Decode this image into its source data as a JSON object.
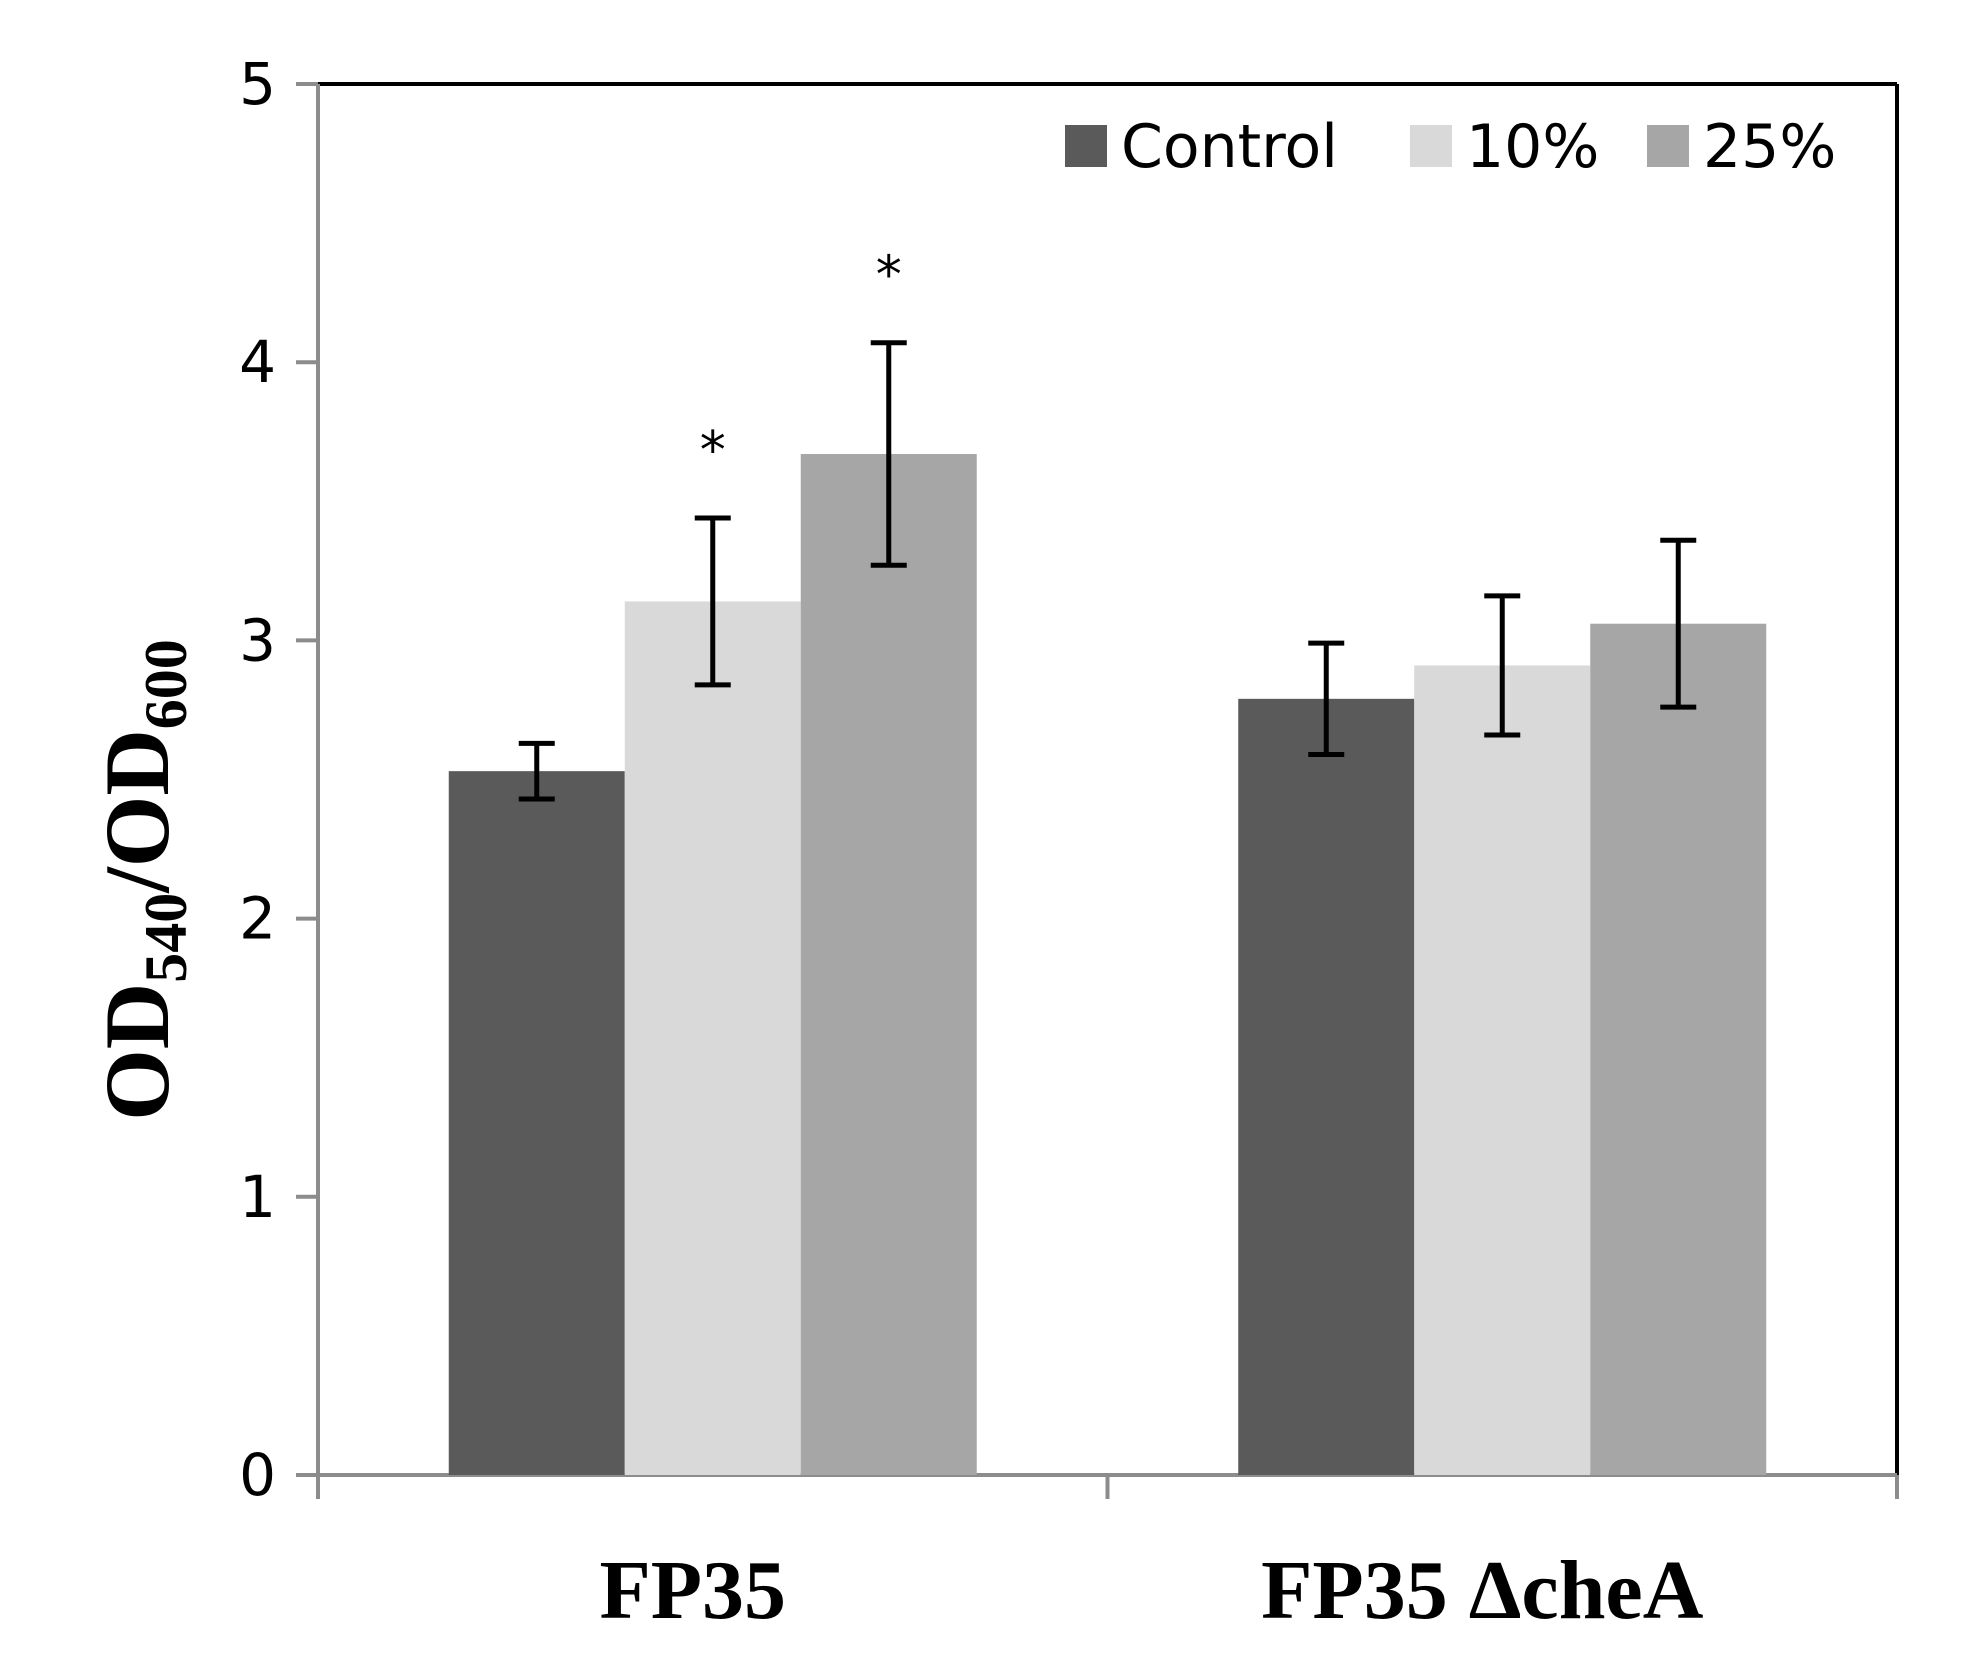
{
  "chart_data": {
    "type": "bar",
    "title": "",
    "xlabel": "",
    "ylabel": {
      "main": "OD",
      "sub1": "540",
      "sep": "/OD",
      "sub2": "600"
    },
    "categories": [
      "FP35",
      "FP35 ΔcheA"
    ],
    "series": [
      {
        "name": "Control",
        "color": "#5a5a5a",
        "values": [
          2.53,
          2.79
        ],
        "errors": [
          0.1,
          0.2
        ],
        "significant": [
          false,
          false
        ]
      },
      {
        "name": "10%",
        "color": "#d9d9d9",
        "values": [
          3.14,
          2.91
        ],
        "errors": [
          0.3,
          0.25
        ],
        "significant": [
          true,
          false
        ]
      },
      {
        "name": "25%",
        "color": "#a6a6a6",
        "values": [
          3.67,
          3.06
        ],
        "errors": [
          0.4,
          0.3
        ],
        "significant": [
          true,
          false
        ]
      }
    ],
    "significance_marker": "*",
    "ylim": [
      0,
      5
    ],
    "yticks": [
      "0",
      "1",
      "2",
      "3",
      "4",
      "5"
    ],
    "legend_position": "top-right",
    "grid": false
  }
}
